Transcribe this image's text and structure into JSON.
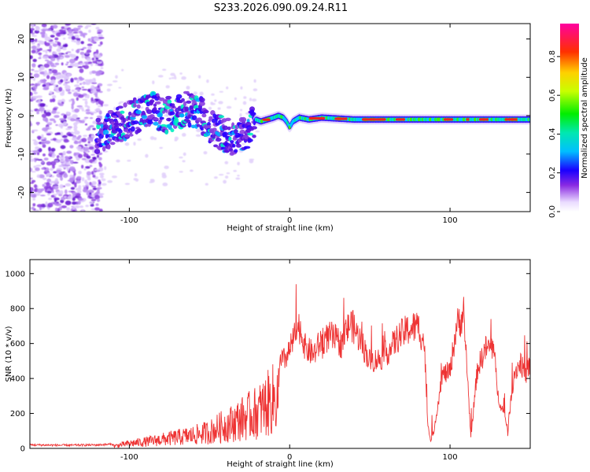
{
  "title": "S233.2026.090.09.24.R11",
  "chart_data": [
    {
      "type": "heatmap",
      "name": "spectrogram",
      "xlabel": "Height of straight line (km)",
      "ylabel": "Frequency (Hz)",
      "xlim": [
        -162,
        150
      ],
      "ylim": [
        -25,
        24
      ],
      "xticks": [
        -100,
        0,
        100
      ],
      "xtick_labels": [
        "-100",
        "0",
        "100"
      ],
      "yticks": [
        -20,
        -10,
        0,
        10,
        20
      ],
      "ytick_labels": [
        "-20",
        "-10",
        "0",
        "10",
        "20"
      ],
      "colorbar": {
        "label": "Normalized spectral amplitude",
        "range": [
          0,
          0.97
        ],
        "ticks": [
          0,
          0.2,
          0.4,
          0.6,
          0.8
        ],
        "tick_labels": [
          "0.0",
          "0.2",
          "0.4",
          "0.6",
          "0.8"
        ]
      },
      "ridge_frequency_track": {
        "x": [
          -118,
          -110,
          -100,
          -92,
          -85,
          -78,
          -70,
          -62,
          -55,
          -48,
          -40,
          -33,
          -28,
          -24,
          -21,
          -18,
          -14,
          -10,
          -7,
          -4,
          -2,
          0,
          2,
          6,
          12,
          20,
          40,
          80,
          120,
          148
        ],
        "y": [
          -5,
          -3,
          -1,
          1,
          1.5,
          0,
          1,
          2,
          0,
          -3,
          -5,
          -6,
          -5,
          -3,
          -1,
          -1.5,
          -1,
          -0.5,
          0,
          -0.5,
          -1.5,
          -3,
          -1.5,
          -0.5,
          -1,
          -0.5,
          -1,
          -1,
          -1,
          -1
        ]
      }
    },
    {
      "type": "line",
      "name": "snr",
      "xlabel": "Height of straight line (km)",
      "ylabel": "SNR (10 * v/v)",
      "xlim": [
        -162,
        150
      ],
      "ylim": [
        0,
        1080
      ],
      "xticks": [
        -100,
        0,
        100
      ],
      "xtick_labels": [
        "-100",
        "0",
        "100"
      ],
      "yticks": [
        0,
        200,
        400,
        600,
        800,
        1000
      ],
      "ytick_labels": [
        "0",
        "200",
        "400",
        "600",
        "800",
        "1000"
      ],
      "color": "#ee3333",
      "envelope": {
        "x": [
          -162,
          -140,
          -120,
          -108,
          -100,
          -90,
          -80,
          -70,
          -60,
          -50,
          -42,
          -36,
          -30,
          -25,
          -20,
          -15,
          -10,
          -6,
          -3,
          0,
          3,
          6,
          10,
          15,
          20,
          26,
          32,
          38,
          44,
          50,
          56,
          62,
          68,
          74,
          80,
          84,
          86,
          88,
          90,
          95,
          100,
          104,
          108,
          110,
          113,
          117,
          122,
          127,
          130,
          136,
          140,
          144,
          147,
          150
        ],
        "y": [
          20,
          18,
          20,
          25,
          45,
          60,
          80,
          100,
          120,
          150,
          200,
          230,
          270,
          300,
          330,
          390,
          450,
          490,
          510,
          560,
          640,
          700,
          570,
          540,
          620,
          640,
          600,
          720,
          620,
          500,
          510,
          560,
          640,
          680,
          700,
          600,
          150,
          40,
          100,
          420,
          440,
          700,
          760,
          560,
          60,
          450,
          570,
          580,
          300,
          120,
          430,
          490,
          420,
          480
        ]
      }
    }
  ]
}
